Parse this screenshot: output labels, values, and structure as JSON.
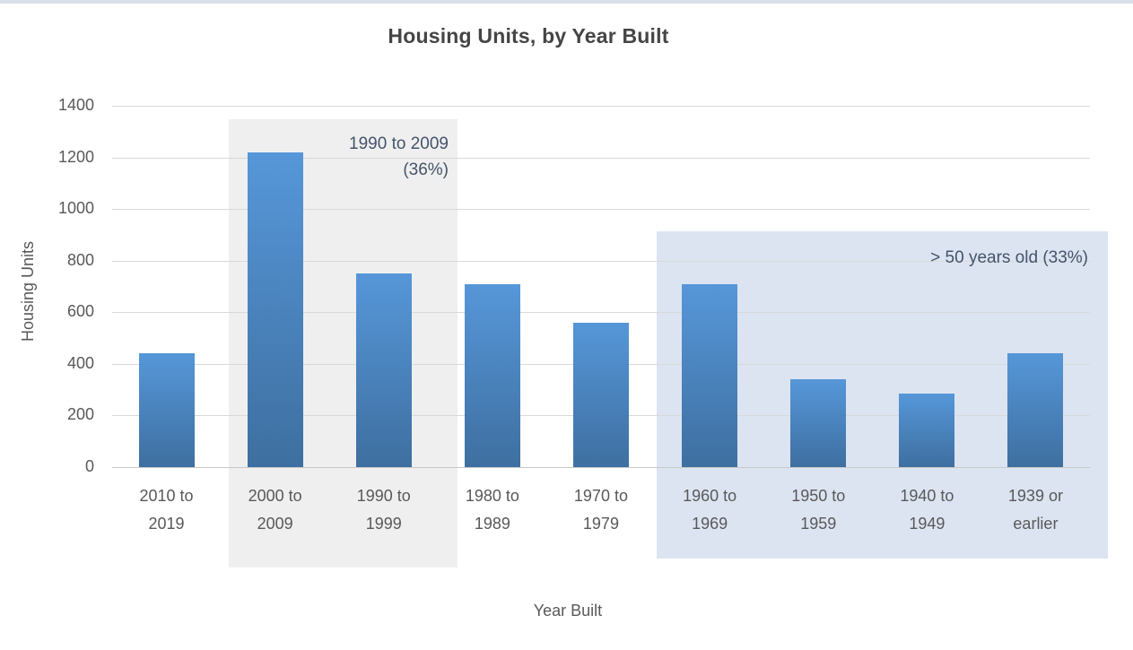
{
  "window": {
    "top_strip_color": "#d9dfeb"
  },
  "chart_data": {
    "type": "bar",
    "title": "Housing Units, by Year Built",
    "xlabel": "Year Built",
    "ylabel": "Housing Units",
    "categories": [
      "2010 to 2019",
      "2000 to 2009",
      "1990 to 1999",
      "1980 to 1989",
      "1970 to 1979",
      "1960 to 1969",
      "1950 to 1959",
      "1940 to 1949",
      "1939 or earlier"
    ],
    "categories_display": [
      [
        "2010 to",
        "2019"
      ],
      [
        "2000 to",
        "2009"
      ],
      [
        "1990 to",
        "1999"
      ],
      [
        "1980 to",
        "1989"
      ],
      [
        "1970 to",
        "1979"
      ],
      [
        "1960 to",
        "1969"
      ],
      [
        "1950 to",
        "1959"
      ],
      [
        "1940 to",
        "1949"
      ],
      [
        "1939 or",
        "earlier"
      ]
    ],
    "values": [
      440,
      1220,
      750,
      710,
      560,
      710,
      340,
      285,
      440
    ],
    "ylim": [
      0,
      1400
    ],
    "yticks": [
      0,
      200,
      400,
      600,
      800,
      1000,
      1200,
      1400
    ],
    "grid": true,
    "legend": false,
    "bar_color_top": "#5697d9",
    "bar_color_bottom": "#3e6fa0",
    "gridline_color": "#d9d9d9",
    "axis_text_color": "#595959",
    "title_color": "#454545",
    "annotations": [
      {
        "id": "mid-period",
        "lines": [
          "1990 to 2009",
          "(36%)"
        ],
        "covers_categories": [
          "2000 to 2009",
          "1990 to 1999"
        ],
        "fill": "#efefef",
        "text_color": "#44546a"
      },
      {
        "id": "over-50-years",
        "lines": [
          "> 50 years old (33%)"
        ],
        "covers_categories": [
          "1960 to 1969",
          "1950 to 1959",
          "1940 to 1949",
          "1939 or earlier"
        ],
        "fill": "#dce4f2",
        "text_color": "#44546a"
      }
    ]
  }
}
